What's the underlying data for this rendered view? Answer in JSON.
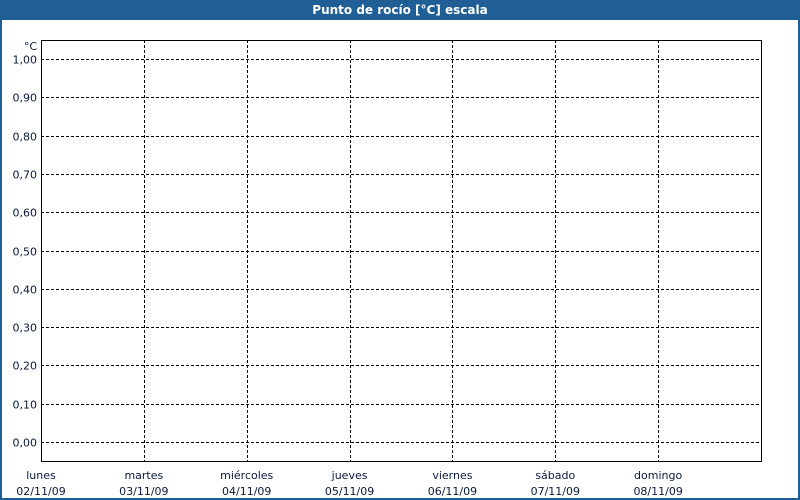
{
  "window": {
    "title": "Punto de rocío [°C] escala"
  },
  "chart_data": {
    "type": "line",
    "title": "Punto de rocío [°C] escala",
    "ylabel": "°C",
    "ylim": [
      -0.05,
      1.05
    ],
    "yticks": [
      "1,00",
      "0,90",
      "0,80",
      "0,70",
      "0,60",
      "0,50",
      "0,40",
      "0,30",
      "0,20",
      "0,10",
      "0,00"
    ],
    "ytick_values": [
      1.0,
      0.9,
      0.8,
      0.7,
      0.6,
      0.5,
      0.4,
      0.3,
      0.2,
      0.1,
      0.0
    ],
    "x_categories": [
      {
        "day": "lunes",
        "date": "02/11/09"
      },
      {
        "day": "martes",
        "date": "03/11/09"
      },
      {
        "day": "miércoles",
        "date": "04/11/09"
      },
      {
        "day": "jueves",
        "date": "05/11/09"
      },
      {
        "day": "viernes",
        "date": "06/11/09"
      },
      {
        "day": "sábado",
        "date": "07/11/09"
      },
      {
        "day": "domingo",
        "date": "08/11/09"
      }
    ],
    "series": [],
    "grid": true,
    "grid_style": "dashed",
    "colors": {
      "titlebar": "#1f5f96",
      "grid": "#000000",
      "text": "#0a1a3a"
    }
  }
}
